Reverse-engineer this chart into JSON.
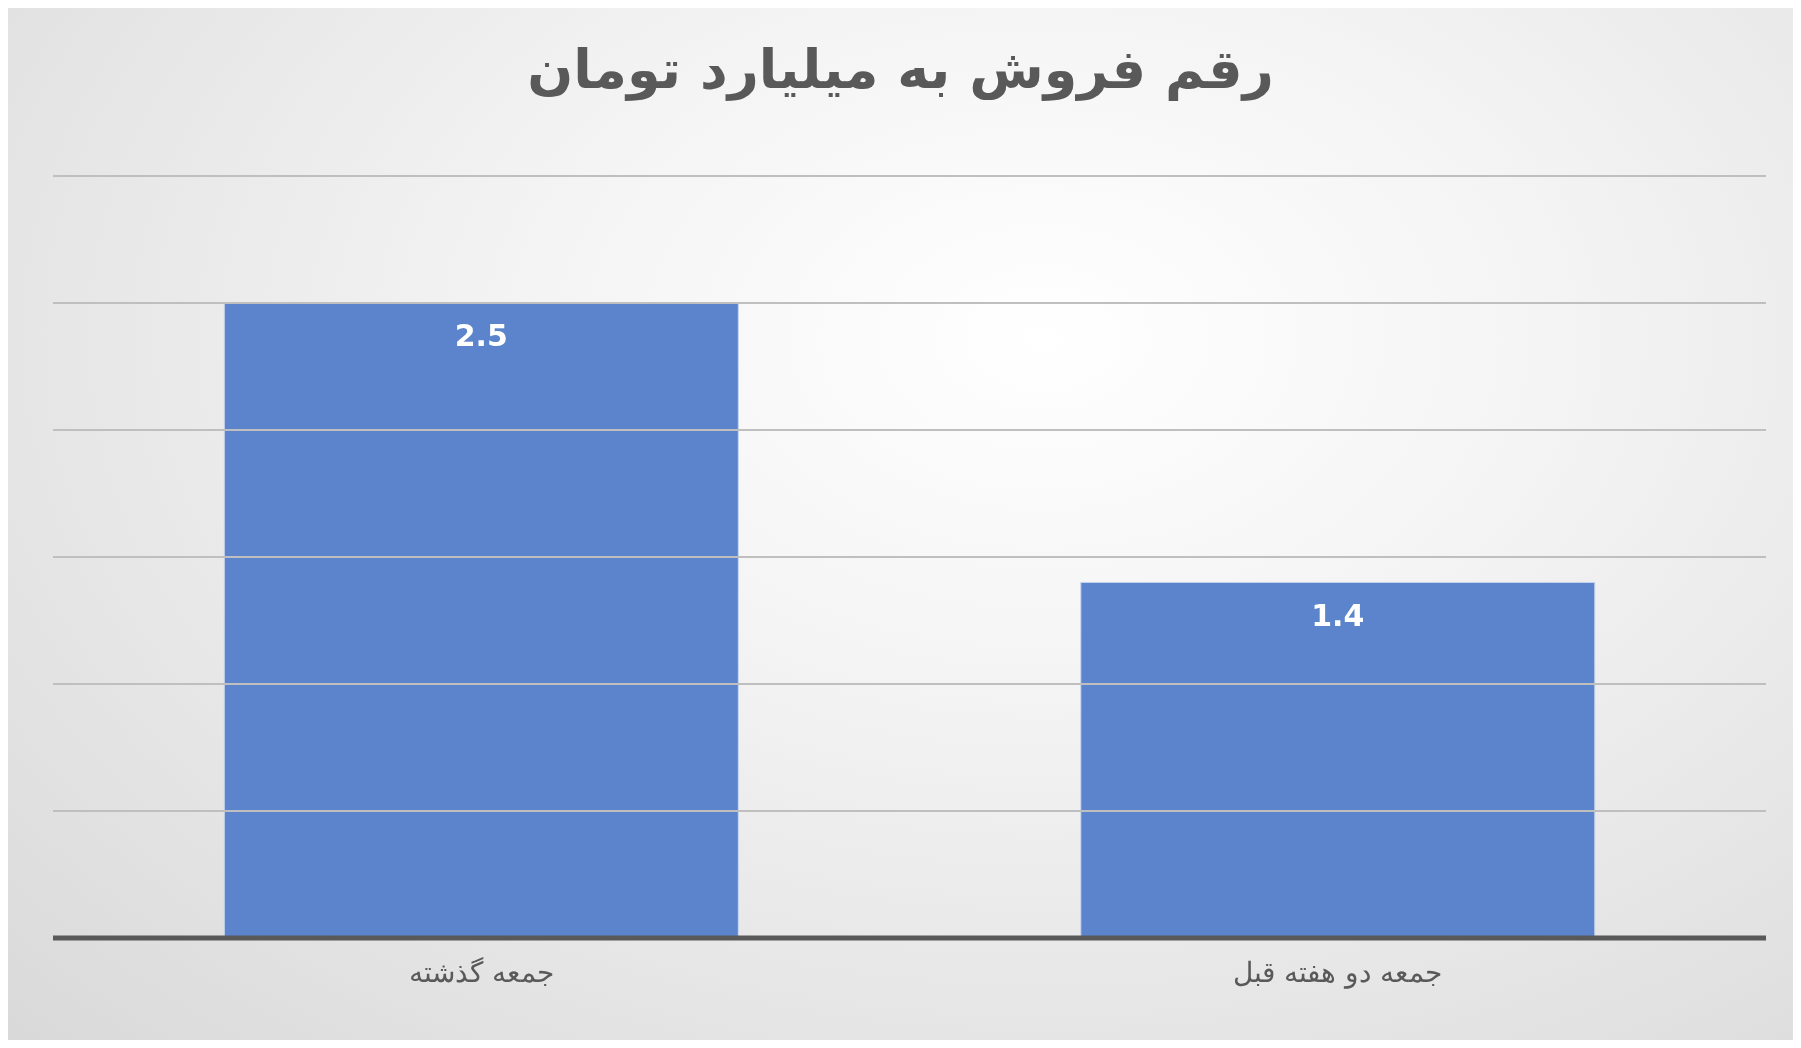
{
  "chart_data": {
    "type": "bar",
    "title": "رقم فروش به میلیارد تومان",
    "categories": [
      "جمعه گذشته",
      "جمعه دو هفته قبل"
    ],
    "values": [
      2.5,
      1.4
    ],
    "color": "#5b84cc",
    "ylim": [
      0,
      3
    ],
    "yticks": [
      {
        "value": 0.5,
        "label": null
      },
      {
        "value": 1,
        "label": null
      },
      {
        "value": 1.5,
        "label": null
      },
      {
        "value": 2,
        "label": null
      },
      {
        "value": 2.5,
        "label": null
      },
      {
        "value": 3,
        "label": null
      }
    ],
    "grid": "y",
    "tick_labels": "x",
    "data_labels": true
  }
}
